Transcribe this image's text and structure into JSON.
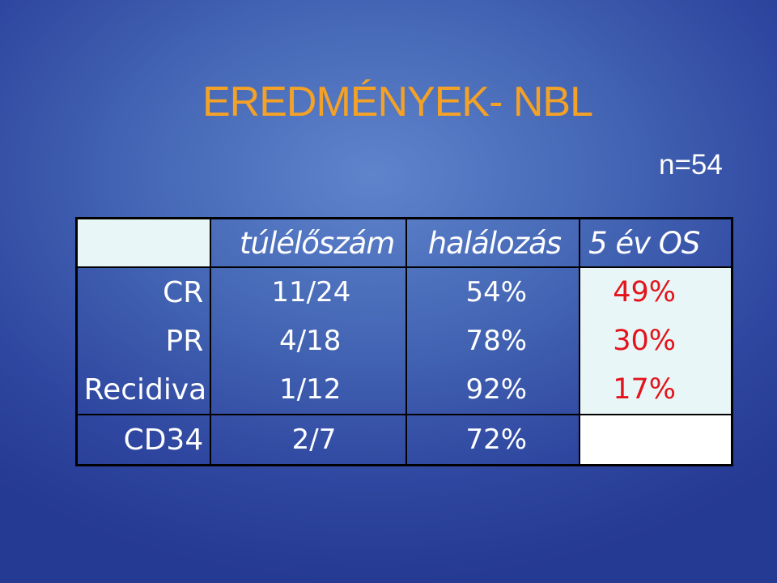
{
  "slide": {
    "title": "EREDMÉNYEK- NBL",
    "n_label": "n=54"
  },
  "table": {
    "headers": [
      "",
      "túlélőszám",
      "halálozás",
      "5 év OS"
    ],
    "rows": [
      {
        "label": "CR",
        "survival": "11/24",
        "mortality": "54%",
        "os": "49%"
      },
      {
        "label": "PR",
        "survival": "4/18",
        "mortality": "78%",
        "os": "30%"
      },
      {
        "label": "Recidiva",
        "survival": "1/12",
        "mortality": "92%",
        "os": "17%"
      },
      {
        "label": "CD34",
        "survival": "2/7",
        "mortality": "72%",
        "os": ""
      }
    ]
  },
  "colors": {
    "title": "#f3a127",
    "os_values": "#e4141c",
    "os_cell_bg": "#e8f6f7",
    "background": "#4668b6"
  }
}
